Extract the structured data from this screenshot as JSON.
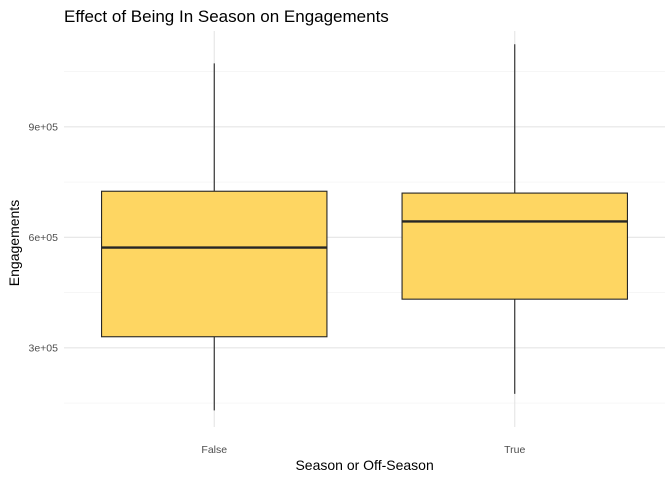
{
  "chart_data": {
    "type": "boxplot",
    "title": "Effect of Being In Season on Engagements",
    "xlabel": "Season or Off-Season",
    "ylabel": "Engagements",
    "categories": [
      "False",
      "True"
    ],
    "y_ticks": [
      300000,
      600000,
      900000
    ],
    "y_tick_labels": [
      "3e+05",
      "6e+05",
      "9e+05"
    ],
    "ylim": [
      85000,
      1160000
    ],
    "grid": true,
    "boxes": [
      {
        "category": "False",
        "min": 130000,
        "q1": 330000,
        "median": 572000,
        "q3": 725000,
        "max": 1072000
      },
      {
        "category": "True",
        "min": 175000,
        "q1": 432000,
        "median": 643000,
        "q3": 720000,
        "max": 1124000
      }
    ],
    "colors": {
      "box_fill": "#fed662",
      "box_stroke": "#262626",
      "grid_major": "#e5e5e5",
      "grid_minor": "#f2f2f2"
    }
  }
}
